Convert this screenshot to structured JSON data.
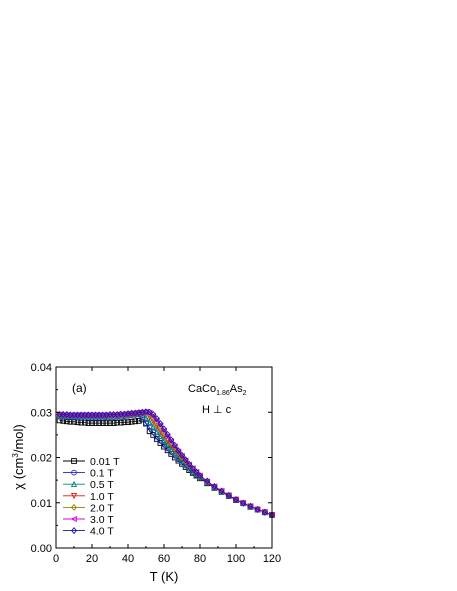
{
  "chart_data": {
    "type": "scatter",
    "panel_label": "(a)",
    "compound": {
      "base": "CaCo",
      "sub1": "1.86",
      "mid": "As",
      "sub2": "2"
    },
    "field_direction": "H ⊥ c",
    "xlabel": "T (K)",
    "ylabel": {
      "pre": "χ (cm",
      "sup": "3",
      "post": "/mol)"
    },
    "xlim": [
      0,
      120
    ],
    "ylim": [
      0.0,
      0.04
    ],
    "xticks": [
      0,
      20,
      40,
      60,
      80,
      100,
      120
    ],
    "xtick_labels": [
      "0",
      "20",
      "40",
      "60",
      "80",
      "100",
      "120"
    ],
    "yticks": [
      0.0,
      0.01,
      0.02,
      0.03,
      0.04
    ],
    "ytick_labels": [
      "0.00",
      "0.01",
      "0.02",
      "0.03",
      "0.04"
    ],
    "grid": false,
    "legend_position": "left",
    "x": [
      2,
      4,
      6,
      8,
      10,
      12,
      14,
      16,
      18,
      20,
      22,
      24,
      26,
      28,
      30,
      32,
      34,
      36,
      38,
      40,
      42,
      44,
      46,
      48,
      50,
      52,
      54,
      56,
      58,
      60,
      62,
      64,
      66,
      68,
      70,
      72,
      74,
      76,
      78,
      80,
      84,
      88,
      92,
      96,
      100,
      104,
      108,
      112,
      116,
      120
    ],
    "series": [
      {
        "name": "0.01 T",
        "color": "#000000",
        "marker": "square",
        "values": [
          0.0282,
          0.0281,
          0.028,
          0.0279,
          0.0279,
          0.0278,
          0.0277,
          0.0277,
          0.0276,
          0.0276,
          0.0276,
          0.0276,
          0.0276,
          0.0276,
          0.0276,
          0.0276,
          0.0277,
          0.0277,
          0.0278,
          0.0278,
          0.0279,
          0.028,
          0.0281,
          0.0284,
          0.0275,
          0.0258,
          0.025,
          0.0241,
          0.0232,
          0.0224,
          0.0216,
          0.0208,
          0.02,
          0.0193,
          0.0186,
          0.0179,
          0.0172,
          0.0166,
          0.016,
          0.0154,
          0.0143,
          0.0133,
          0.0124,
          0.0115,
          0.0106,
          0.0099,
          0.0091,
          0.0085,
          0.0079,
          0.0073
        ]
      },
      {
        "name": "0.1 T",
        "color": "#2222cc",
        "marker": "circle",
        "values": [
          0.029,
          0.029,
          0.0289,
          0.0289,
          0.0289,
          0.0288,
          0.0288,
          0.0288,
          0.0288,
          0.0288,
          0.0288,
          0.0288,
          0.0288,
          0.0289,
          0.0289,
          0.0289,
          0.029,
          0.029,
          0.0291,
          0.0292,
          0.0293,
          0.0294,
          0.0295,
          0.0288,
          0.0276,
          0.0266,
          0.0256,
          0.0246,
          0.0237,
          0.0228,
          0.022,
          0.0212,
          0.0204,
          0.0196,
          0.0189,
          0.0182,
          0.0175,
          0.0168,
          0.0162,
          0.0156,
          0.0145,
          0.0134,
          0.0125,
          0.0115,
          0.0107,
          0.0099,
          0.0092,
          0.0085,
          0.0079,
          0.0073
        ]
      },
      {
        "name": "0.5 T",
        "color": "#008a73",
        "marker": "triangle-up",
        "values": [
          0.0293,
          0.0292,
          0.0292,
          0.0291,
          0.0291,
          0.0291,
          0.0291,
          0.0291,
          0.0291,
          0.0291,
          0.0291,
          0.0291,
          0.0291,
          0.0291,
          0.0292,
          0.0292,
          0.0292,
          0.0293,
          0.0293,
          0.0294,
          0.0295,
          0.0296,
          0.0297,
          0.0298,
          0.0288,
          0.0278,
          0.0268,
          0.0257,
          0.0247,
          0.0237,
          0.0228,
          0.0219,
          0.021,
          0.0201,
          0.0193,
          0.0185,
          0.0178,
          0.0171,
          0.0164,
          0.0157,
          0.0146,
          0.0135,
          0.0125,
          0.0116,
          0.0107,
          0.0099,
          0.0092,
          0.0085,
          0.0079,
          0.0073
        ]
      },
      {
        "name": "1.0 T",
        "color": "#d81b1b",
        "marker": "triangle-down",
        "values": [
          0.0294,
          0.0293,
          0.0293,
          0.0292,
          0.0292,
          0.0292,
          0.0292,
          0.0292,
          0.0292,
          0.0292,
          0.0292,
          0.0292,
          0.0292,
          0.0292,
          0.0293,
          0.0293,
          0.0293,
          0.0294,
          0.0294,
          0.0295,
          0.0296,
          0.0297,
          0.0298,
          0.0299,
          0.0299,
          0.029,
          0.028,
          0.0269,
          0.0258,
          0.0247,
          0.0237,
          0.0227,
          0.0217,
          0.0207,
          0.0198,
          0.0189,
          0.0181,
          0.0173,
          0.0166,
          0.0158,
          0.0146,
          0.0135,
          0.0125,
          0.0116,
          0.0107,
          0.0099,
          0.0092,
          0.0085,
          0.0079,
          0.0073
        ]
      },
      {
        "name": "2.0 T",
        "color": "#8a8a00",
        "marker": "diamond",
        "values": [
          0.0294,
          0.0294,
          0.0293,
          0.0293,
          0.0293,
          0.0293,
          0.0293,
          0.0293,
          0.0293,
          0.0293,
          0.0293,
          0.0293,
          0.0293,
          0.0293,
          0.0293,
          0.0294,
          0.0294,
          0.0294,
          0.0295,
          0.0296,
          0.0296,
          0.0297,
          0.0298,
          0.0299,
          0.03,
          0.0296,
          0.0287,
          0.0276,
          0.0265,
          0.0254,
          0.0243,
          0.0232,
          0.0221,
          0.0211,
          0.0201,
          0.0192,
          0.0183,
          0.0175,
          0.0167,
          0.0159,
          0.0147,
          0.0136,
          0.0126,
          0.0116,
          0.0107,
          0.0099,
          0.0092,
          0.0085,
          0.0079,
          0.0073
        ]
      },
      {
        "name": "3.0 T",
        "color": "#e000e0",
        "marker": "triangle-left",
        "values": [
          0.0295,
          0.0294,
          0.0294,
          0.0294,
          0.0294,
          0.0294,
          0.0294,
          0.0294,
          0.0294,
          0.0294,
          0.0294,
          0.0294,
          0.0294,
          0.0294,
          0.0294,
          0.0294,
          0.0295,
          0.0295,
          0.0296,
          0.0296,
          0.0297,
          0.0298,
          0.0299,
          0.03,
          0.0301,
          0.0299,
          0.0292,
          0.0282,
          0.0271,
          0.0259,
          0.0247,
          0.0236,
          0.0224,
          0.0213,
          0.0203,
          0.0193,
          0.0184,
          0.0176,
          0.0168,
          0.016,
          0.0147,
          0.0136,
          0.0126,
          0.0116,
          0.0107,
          0.0099,
          0.0092,
          0.0085,
          0.0079,
          0.0073
        ]
      },
      {
        "name": "4.0 T",
        "color": "#1a1aa0",
        "marker": "diamond-open",
        "values": [
          0.0295,
          0.0295,
          0.0295,
          0.0294,
          0.0294,
          0.0294,
          0.0294,
          0.0294,
          0.0294,
          0.0294,
          0.0294,
          0.0294,
          0.0294,
          0.0294,
          0.0295,
          0.0295,
          0.0295,
          0.0296,
          0.0296,
          0.0297,
          0.0298,
          0.0298,
          0.0299,
          0.03,
          0.0301,
          0.03,
          0.0295,
          0.0286,
          0.0275,
          0.0263,
          0.0251,
          0.0239,
          0.0227,
          0.0215,
          0.0205,
          0.0195,
          0.0185,
          0.0176,
          0.0168,
          0.016,
          0.0148,
          0.0136,
          0.0126,
          0.0116,
          0.0107,
          0.0099,
          0.0092,
          0.0085,
          0.0079,
          0.0073
        ]
      }
    ]
  }
}
